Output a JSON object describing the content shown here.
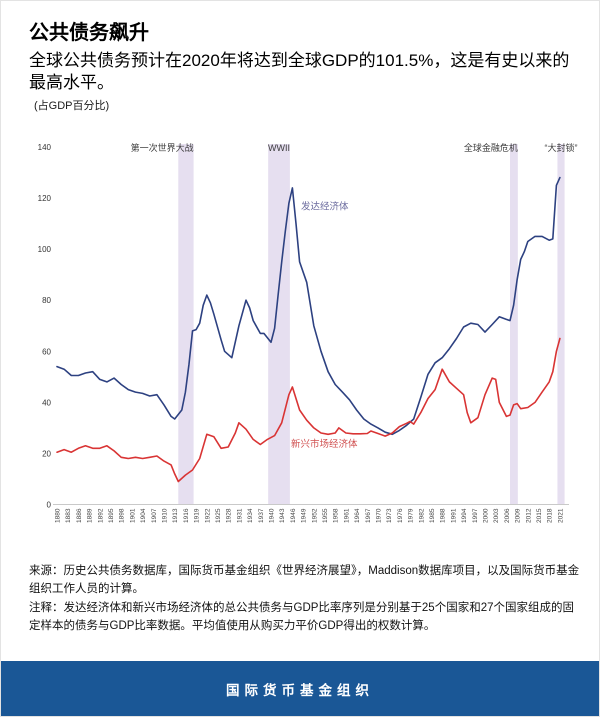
{
  "header": {
    "title": "公共债务飙升",
    "subtitle": "全球公共债务预计在2020年将达到全球GDP的101.5%，这是有史以来的最高水平。",
    "unit_label": "(占GDP百分比)"
  },
  "chart_data": {
    "type": "line",
    "title": "公共债务飙升",
    "ylabel": "占GDP百分比",
    "grid": false,
    "legend_position": "inline-labels",
    "ylim": [
      0,
      140
    ],
    "xlim": [
      1880,
      2022.7
    ],
    "y_ticks": [
      0,
      20,
      40,
      60,
      80,
      100,
      120,
      140
    ],
    "x_ticks": [
      1880,
      1883,
      1886,
      1889,
      1892,
      1895,
      1898,
      1901,
      1904,
      1907,
      1910,
      1913,
      1916,
      1919,
      1922,
      1925,
      1928,
      1931,
      1934,
      1937,
      1940,
      1943,
      1946,
      1949,
      1952,
      1955,
      1958,
      1961,
      1964,
      1967,
      1970,
      1973,
      1976,
      1979,
      1982,
      1985,
      1988,
      1991,
      1994,
      1997,
      2000,
      2003,
      2006,
      2009,
      2012,
      2015,
      2018,
      2021
    ],
    "band_color": "#e6dff0",
    "event_bands": [
      {
        "label": "第一次世界大战",
        "from": 1914,
        "to": 1918.3,
        "label_anchor": "end"
      },
      {
        "label": "WWII",
        "from": 1939.2,
        "to": 1945.3,
        "label_anchor": "middle"
      },
      {
        "label": "全球金融危机",
        "from": 2007,
        "to": 2009.2,
        "label_anchor": "end"
      },
      {
        "label": "“大封锁”",
        "from": 2020.3,
        "to": 2022.3,
        "label_anchor": "middle"
      }
    ],
    "series": [
      {
        "name": "发达经济体",
        "color": "#2d4181",
        "label_color": "#6b6b9e",
        "label_pos": {
          "year": 1948.4,
          "value": 115.5
        },
        "points": [
          [
            1880,
            54
          ],
          [
            1882,
            53
          ],
          [
            1884,
            50.5
          ],
          [
            1886,
            50.5
          ],
          [
            1888,
            51.5
          ],
          [
            1890,
            52
          ],
          [
            1892,
            49
          ],
          [
            1894,
            48
          ],
          [
            1896,
            49.5
          ],
          [
            1898,
            47
          ],
          [
            1900,
            45
          ],
          [
            1902,
            44
          ],
          [
            1904,
            43.5
          ],
          [
            1906,
            42.5
          ],
          [
            1908,
            43
          ],
          [
            1910,
            39
          ],
          [
            1912,
            34.5
          ],
          [
            1913,
            33.5
          ],
          [
            1915,
            37
          ],
          [
            1916,
            44
          ],
          [
            1917,
            55
          ],
          [
            1918,
            68
          ],
          [
            1919,
            68.5
          ],
          [
            1920,
            71
          ],
          [
            1921,
            78
          ],
          [
            1922,
            82
          ],
          [
            1923,
            79
          ],
          [
            1924,
            74.5
          ],
          [
            1926,
            64.5
          ],
          [
            1927,
            60
          ],
          [
            1929,
            57.5
          ],
          [
            1931,
            70
          ],
          [
            1933,
            80
          ],
          [
            1934,
            77
          ],
          [
            1935,
            72
          ],
          [
            1937,
            67
          ],
          [
            1938,
            67
          ],
          [
            1940,
            63.5
          ],
          [
            1941,
            69
          ],
          [
            1942,
            82
          ],
          [
            1943,
            95
          ],
          [
            1944,
            107
          ],
          [
            1945,
            118
          ],
          [
            1946,
            124
          ],
          [
            1947,
            110
          ],
          [
            1948,
            95
          ],
          [
            1950,
            87
          ],
          [
            1952,
            70
          ],
          [
            1954,
            60
          ],
          [
            1956,
            52
          ],
          [
            1958,
            47
          ],
          [
            1960,
            44
          ],
          [
            1962,
            41
          ],
          [
            1964,
            37
          ],
          [
            1966,
            33.5
          ],
          [
            1968,
            31.5
          ],
          [
            1970,
            30
          ],
          [
            1972,
            28.3
          ],
          [
            1974,
            27.5
          ],
          [
            1976,
            29
          ],
          [
            1978,
            31
          ],
          [
            1980,
            33.5
          ],
          [
            1982,
            42
          ],
          [
            1984,
            51
          ],
          [
            1986,
            55.5
          ],
          [
            1988,
            57.5
          ],
          [
            1990,
            61
          ],
          [
            1992,
            65
          ],
          [
            1994,
            69.5
          ],
          [
            1996,
            71
          ],
          [
            1998,
            70.5
          ],
          [
            2000,
            67.5
          ],
          [
            2002,
            70.5
          ],
          [
            2004,
            73.5
          ],
          [
            2006,
            72.5
          ],
          [
            2007,
            72
          ],
          [
            2008,
            78
          ],
          [
            2009,
            88
          ],
          [
            2010,
            96
          ],
          [
            2011,
            99
          ],
          [
            2012,
            103
          ],
          [
            2014,
            105
          ],
          [
            2016,
            105
          ],
          [
            2018,
            103.5
          ],
          [
            2019,
            104
          ],
          [
            2020,
            125
          ],
          [
            2021,
            128
          ]
        ]
      },
      {
        "name": "新兴市场经济体",
        "color": "#d93434",
        "label_color": "#d05050",
        "label_pos": {
          "year": 1945.6,
          "value": 22.5
        },
        "points": [
          [
            1880,
            20.5
          ],
          [
            1882,
            21.5
          ],
          [
            1884,
            20.5
          ],
          [
            1886,
            22
          ],
          [
            1888,
            23
          ],
          [
            1890,
            22
          ],
          [
            1892,
            22
          ],
          [
            1894,
            23
          ],
          [
            1896,
            21
          ],
          [
            1898,
            18.5
          ],
          [
            1900,
            18
          ],
          [
            1902,
            18.5
          ],
          [
            1904,
            18
          ],
          [
            1906,
            18.5
          ],
          [
            1908,
            19
          ],
          [
            1910,
            17
          ],
          [
            1912,
            15.5
          ],
          [
            1913,
            12
          ],
          [
            1914,
            9
          ],
          [
            1916,
            11.5
          ],
          [
            1918,
            13.5
          ],
          [
            1920,
            18
          ],
          [
            1922,
            27.5
          ],
          [
            1924,
            26.5
          ],
          [
            1926,
            22
          ],
          [
            1928,
            22.5
          ],
          [
            1930,
            28
          ],
          [
            1931,
            32
          ],
          [
            1933,
            29.5
          ],
          [
            1935,
            25.5
          ],
          [
            1937,
            23.5
          ],
          [
            1939,
            25.5
          ],
          [
            1941,
            27
          ],
          [
            1943,
            32
          ],
          [
            1945,
            43
          ],
          [
            1946,
            46
          ],
          [
            1948,
            37
          ],
          [
            1950,
            33
          ],
          [
            1952,
            30
          ],
          [
            1954,
            28
          ],
          [
            1956,
            27.5
          ],
          [
            1958,
            28
          ],
          [
            1959,
            30
          ],
          [
            1961,
            28
          ],
          [
            1963,
            27.7
          ],
          [
            1965,
            27.7
          ],
          [
            1967,
            27.8
          ],
          [
            1968,
            28.8
          ],
          [
            1970,
            27.8
          ],
          [
            1972,
            26.8
          ],
          [
            1974,
            28
          ],
          [
            1976,
            30.5
          ],
          [
            1978,
            31.8
          ],
          [
            1979,
            32.5
          ],
          [
            1980,
            31.5
          ],
          [
            1982,
            36
          ],
          [
            1984,
            41.5
          ],
          [
            1986,
            45
          ],
          [
            1988,
            53
          ],
          [
            1990,
            48
          ],
          [
            1992,
            45.5
          ],
          [
            1994,
            43
          ],
          [
            1995,
            36
          ],
          [
            1996,
            32
          ],
          [
            1998,
            34
          ],
          [
            2000,
            43
          ],
          [
            2002,
            49.5
          ],
          [
            2003,
            49
          ],
          [
            2004,
            40
          ],
          [
            2006,
            34.5
          ],
          [
            2007,
            35
          ],
          [
            2008,
            39
          ],
          [
            2009,
            39.5
          ],
          [
            2010,
            37.5
          ],
          [
            2012,
            38
          ],
          [
            2014,
            40
          ],
          [
            2016,
            44
          ],
          [
            2018,
            48
          ],
          [
            2019,
            52
          ],
          [
            2020,
            60
          ],
          [
            2021,
            65
          ]
        ]
      }
    ]
  },
  "notes": {
    "source": "来源：历史公共债务数据库，国际货币基金组织《世界经济展望》，Maddison数据库项目，以及国际货币基金组织工作人员的计算。",
    "note": "注释：发达经济体和新兴市场经济体的总公共债务与GDP比率序列是分别基于25个国家和27个国家组成的固定样本的债务与GDP比率数据。平均值使用从购买力平价GDP得出的权数计算。"
  },
  "footer": {
    "brand": "国际货币基金组织",
    "color": "#1a5796"
  }
}
